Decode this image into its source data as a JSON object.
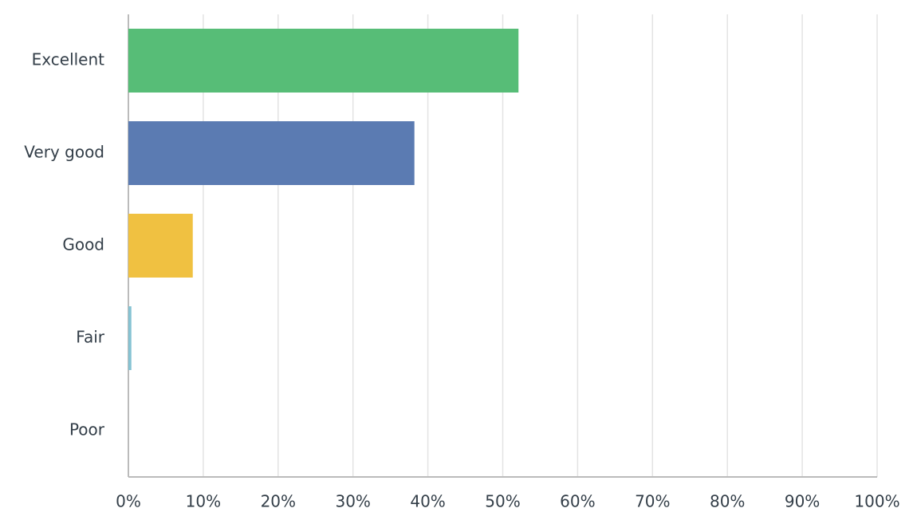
{
  "chart_data": {
    "type": "bar",
    "orientation": "horizontal",
    "categories": [
      "Excellent",
      "Very good",
      "Good",
      "Fair",
      "Poor"
    ],
    "values": [
      52.1,
      38.2,
      8.6,
      0.4,
      0
    ],
    "colors": [
      "#57bd77",
      "#5b7bb2",
      "#f0c141",
      "#86c3d3",
      "#ab5aa8"
    ],
    "xlim": [
      0,
      100
    ],
    "xticks": [
      {
        "value": 0,
        "label": "0%"
      },
      {
        "value": 10,
        "label": "10%"
      },
      {
        "value": 20,
        "label": "20%"
      },
      {
        "value": 30,
        "label": "30%"
      },
      {
        "value": 40,
        "label": "40%"
      },
      {
        "value": 50,
        "label": "50%"
      },
      {
        "value": 60,
        "label": "60%"
      },
      {
        "value": 70,
        "label": "70%"
      },
      {
        "value": 80,
        "label": "80%"
      },
      {
        "value": 90,
        "label": "90%"
      },
      {
        "value": 100,
        "label": "100%"
      }
    ],
    "grid": true
  }
}
